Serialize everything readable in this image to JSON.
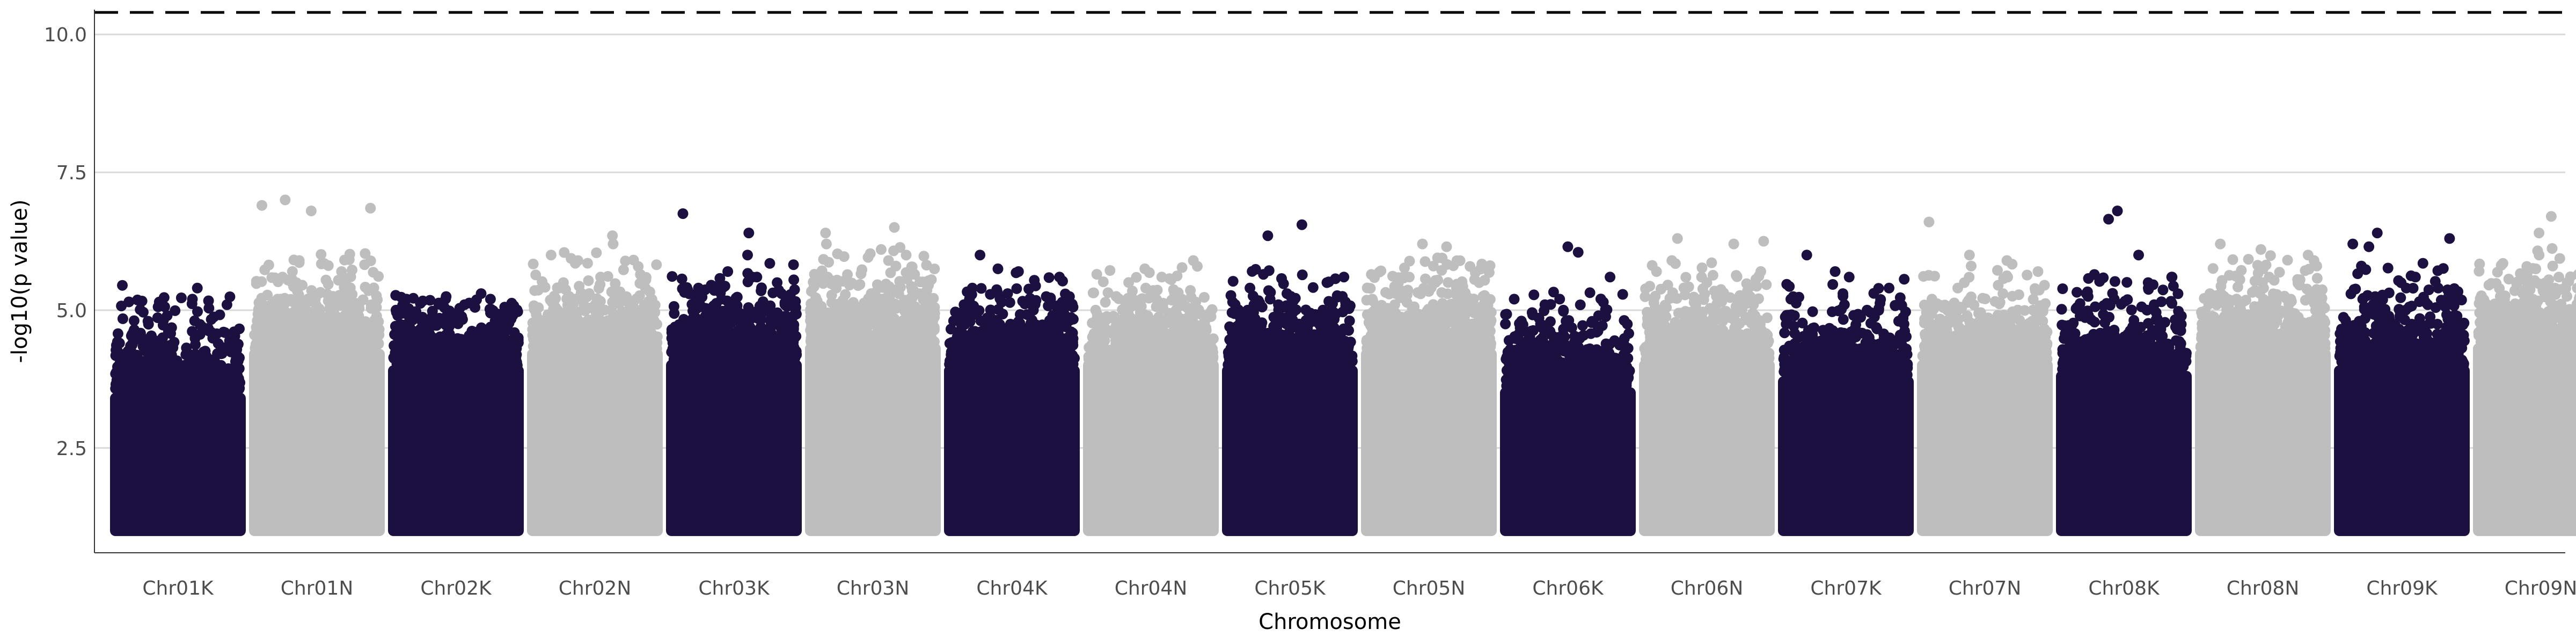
{
  "chart_data": {
    "type": "scatter",
    "title": "",
    "xlabel": "Chromosome",
    "ylabel": "-log10(p value)",
    "ylim": [
      0.6,
      10.45
    ],
    "yticks": [
      2.5,
      5.0,
      7.5,
      10.0
    ],
    "ytick_labels": [
      "2.5",
      "5.0",
      "7.5",
      "10.0"
    ],
    "grid": "horizontal-major",
    "legend": "none",
    "threshold": {
      "value": 10.4,
      "style": "dashed",
      "color": "#000000"
    },
    "point_min": 1.0,
    "colors": {
      "odd": "#1c1040",
      "even": "#bebebe"
    },
    "categories": [
      "Chr01K",
      "Chr01N",
      "Chr02K",
      "Chr02N",
      "Chr03K",
      "Chr03N",
      "Chr04K",
      "Chr04N",
      "Chr05K",
      "Chr05N",
      "Chr06K",
      "Chr06N",
      "Chr07K",
      "Chr07N",
      "Chr08K",
      "Chr08N",
      "Chr09K",
      "Chr09N"
    ],
    "chromosomes": [
      {
        "name": "Chr01K",
        "color": "#1c1040",
        "dense_top": 3.5,
        "peaks": [
          5.45,
          5.4,
          5.2,
          5.15,
          5.1,
          4.9,
          4.8,
          4.7,
          4.6,
          4.5
        ]
      },
      {
        "name": "Chr01N",
        "color": "#bebebe",
        "dense_top": 4.3,
        "peaks": [
          7.0,
          6.9,
          6.8,
          6.85,
          5.9,
          5.7,
          5.6,
          5.5,
          5.3,
          5.2
        ]
      },
      {
        "name": "Chr02K",
        "color": "#1c1040",
        "dense_top": 4.0,
        "peaks": [
          5.3,
          5.2,
          5.2,
          5.1,
          5.05,
          5.0,
          4.9,
          4.8,
          4.7,
          4.6
        ]
      },
      {
        "name": "Chr02N",
        "color": "#bebebe",
        "dense_top": 4.3,
        "peaks": [
          6.35,
          6.2,
          6.0,
          5.9,
          5.85,
          5.6,
          5.55,
          5.5,
          5.2,
          5.1
        ]
      },
      {
        "name": "Chr03K",
        "color": "#1c1040",
        "dense_top": 4.1,
        "peaks": [
          6.75,
          6.4,
          6.0,
          5.7,
          5.6,
          5.6,
          5.5,
          5.4,
          5.3,
          5.2
        ]
      },
      {
        "name": "Chr03N",
        "color": "#bebebe",
        "dense_top": 4.4,
        "peaks": [
          6.5,
          6.4,
          6.2,
          6.1,
          6.0,
          5.9,
          5.8,
          5.6,
          5.4,
          5.3
        ]
      },
      {
        "name": "Chr04K",
        "color": "#1c1040",
        "dense_top": 4.0,
        "peaks": [
          6.0,
          5.75,
          5.7,
          5.6,
          5.4,
          5.3,
          5.2,
          5.1,
          5.0,
          4.9
        ]
      },
      {
        "name": "Chr04N",
        "color": "#bebebe",
        "dense_top": 4.1,
        "peaks": [
          5.9,
          5.75,
          5.6,
          5.2,
          5.1,
          5.0,
          4.9,
          4.8,
          4.7,
          4.6
        ]
      },
      {
        "name": "Chr05K",
        "color": "#1c1040",
        "dense_top": 4.0,
        "peaks": [
          6.55,
          6.35,
          5.65,
          5.5,
          5.4,
          5.3,
          5.2,
          5.1,
          5.0,
          4.9
        ]
      },
      {
        "name": "Chr05N",
        "color": "#bebebe",
        "dense_top": 4.3,
        "peaks": [
          6.2,
          6.15,
          5.8,
          5.6,
          5.5,
          5.4,
          5.3,
          5.2,
          5.1,
          5.0
        ]
      },
      {
        "name": "Chr06K",
        "color": "#1c1040",
        "dense_top": 3.6,
        "peaks": [
          6.15,
          6.05,
          5.6,
          5.2,
          5.1,
          5.0,
          4.9,
          4.8,
          4.7,
          4.6
        ]
      },
      {
        "name": "Chr06N",
        "color": "#bebebe",
        "dense_top": 4.1,
        "peaks": [
          6.3,
          6.25,
          6.2,
          5.9,
          5.7,
          5.6,
          5.5,
          5.3,
          5.2,
          5.1
        ]
      },
      {
        "name": "Chr07K",
        "color": "#1c1040",
        "dense_top": 3.8,
        "peaks": [
          6.0,
          5.7,
          5.6,
          5.4,
          5.3,
          5.2,
          5.1,
          5.0,
          4.9,
          4.8
        ]
      },
      {
        "name": "Chr07N",
        "color": "#bebebe",
        "dense_top": 4.1,
        "peaks": [
          6.6,
          6.0,
          5.9,
          5.8,
          5.7,
          5.6,
          5.5,
          5.4,
          5.3,
          5.2
        ]
      },
      {
        "name": "Chr08K",
        "color": "#1c1040",
        "dense_top": 3.9,
        "peaks": [
          6.8,
          6.65,
          6.0,
          5.6,
          5.5,
          5.4,
          5.3,
          5.2,
          5.1,
          5.0
        ]
      },
      {
        "name": "Chr08N",
        "color": "#bebebe",
        "dense_top": 4.3,
        "peaks": [
          6.2,
          6.1,
          6.0,
          5.9,
          5.8,
          5.6,
          5.5,
          5.4,
          5.3,
          5.2
        ]
      },
      {
        "name": "Chr09K",
        "color": "#1c1040",
        "dense_top": 4.0,
        "peaks": [
          6.4,
          6.3,
          6.2,
          6.15,
          5.85,
          5.8,
          5.6,
          5.4,
          5.2,
          5.1
        ]
      },
      {
        "name": "Chr09N",
        "color": "#bebebe",
        "dense_top": 4.4,
        "peaks": [
          6.7,
          6.65,
          6.4,
          6.2,
          6.0,
          5.8,
          5.6,
          5.5,
          5.4,
          5.3
        ]
      }
    ]
  }
}
